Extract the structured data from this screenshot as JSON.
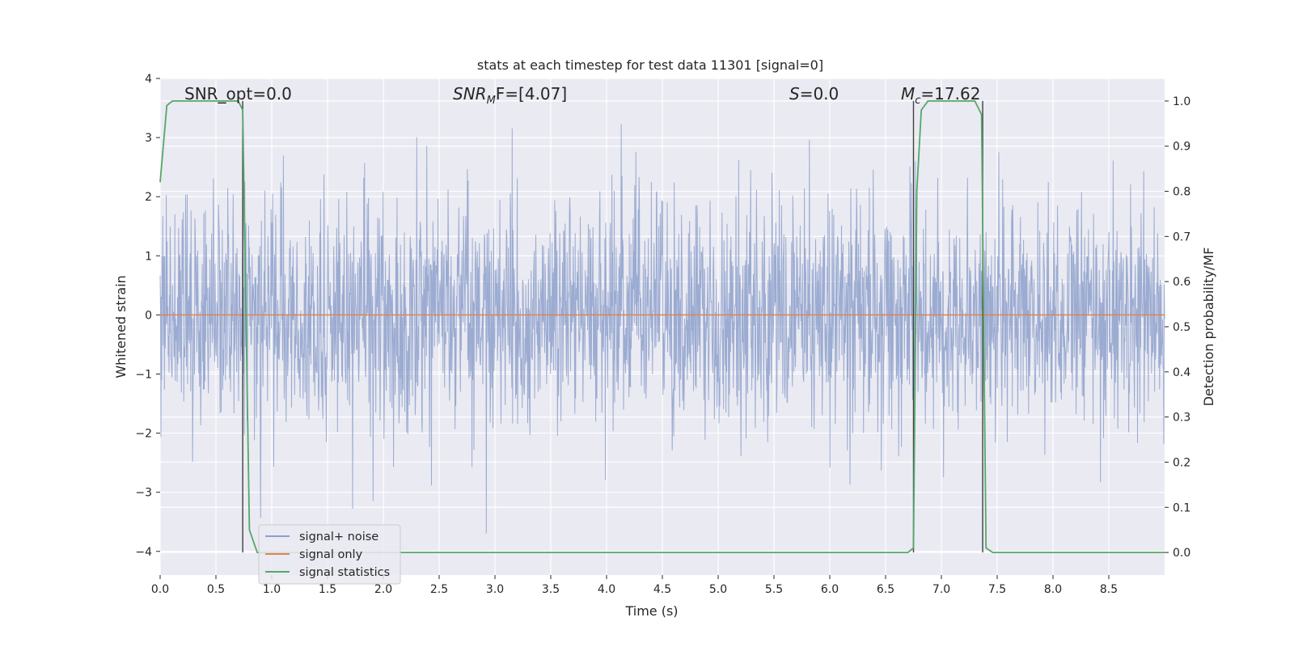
{
  "chart_data": {
    "type": "line",
    "title": "stats at each timestep for test data 11301 [signal=0]",
    "xlabel": "Time (s)",
    "ylabel": "Whitened strain",
    "ylabel_right": "Detection probability/MF",
    "xlim": [
      0,
      9.0
    ],
    "ylim": [
      -4.4,
      4.0
    ],
    "ylim_right": [
      -0.05,
      1.05
    ],
    "x_ticks": [
      "0.0",
      "0.5",
      "1.0",
      "1.5",
      "2.0",
      "2.5",
      "3.0",
      "3.5",
      "4.0",
      "4.5",
      "5.0",
      "5.5",
      "6.0",
      "6.5",
      "7.0",
      "7.5",
      "8.0",
      "8.5"
    ],
    "y_ticks": [
      "4",
      "3",
      "2",
      "1",
      "0",
      "−1",
      "−2",
      "−3",
      "−4"
    ],
    "y_right_ticks": [
      "1.0",
      "0.9",
      "0.8",
      "0.7",
      "0.6",
      "0.5",
      "0.4",
      "0.3",
      "0.2",
      "0.1",
      "0.0"
    ],
    "grid": true,
    "legend_position": "lower-left",
    "annotations": {
      "snr_opt": "SNR_opt=0.0",
      "snr_mf_main": "SNR",
      "snr_mf_sub": "M",
      "snr_mf_rest": "F=[4.07]",
      "s_main": "S",
      "s_rest": "=0.0",
      "mc_main": "M",
      "mc_sub": "c",
      "mc_rest": "=17.62"
    },
    "series": [
      {
        "name": "signal+ noise",
        "color": "#8da0cb",
        "description_values": "whitened noise samples spanning roughly -3.7 to 3.6",
        "envelope": {
          "typical_max": 1.8,
          "typical_min": -1.6,
          "extreme_max": 3.6,
          "extreme_min": -3.7
        }
      },
      {
        "name": "signal only",
        "color": "#dd8452",
        "x": [
          0.0,
          9.0
        ],
        "y": [
          0.0,
          0.0
        ]
      },
      {
        "name": "signal statistics",
        "color": "#55a868",
        "axis": "right",
        "x": [
          0.0,
          0.06,
          0.11,
          0.6,
          0.7,
          0.74,
          0.8,
          0.87,
          0.92,
          6.7,
          6.75,
          6.78,
          6.82,
          6.88,
          7.3,
          7.36,
          7.4,
          7.46,
          9.0
        ],
        "y": [
          0.82,
          0.99,
          1.0,
          1.0,
          1.0,
          0.98,
          0.05,
          0.0,
          0.0,
          0.0,
          0.01,
          0.8,
          0.98,
          1.0,
          1.0,
          0.97,
          0.01,
          0.0,
          0.0
        ]
      }
    ],
    "vlines": [
      0.74,
      6.75,
      7.37
    ],
    "vline_range_right": [
      0.0,
      1.0
    ],
    "vline_color": "#404040"
  }
}
